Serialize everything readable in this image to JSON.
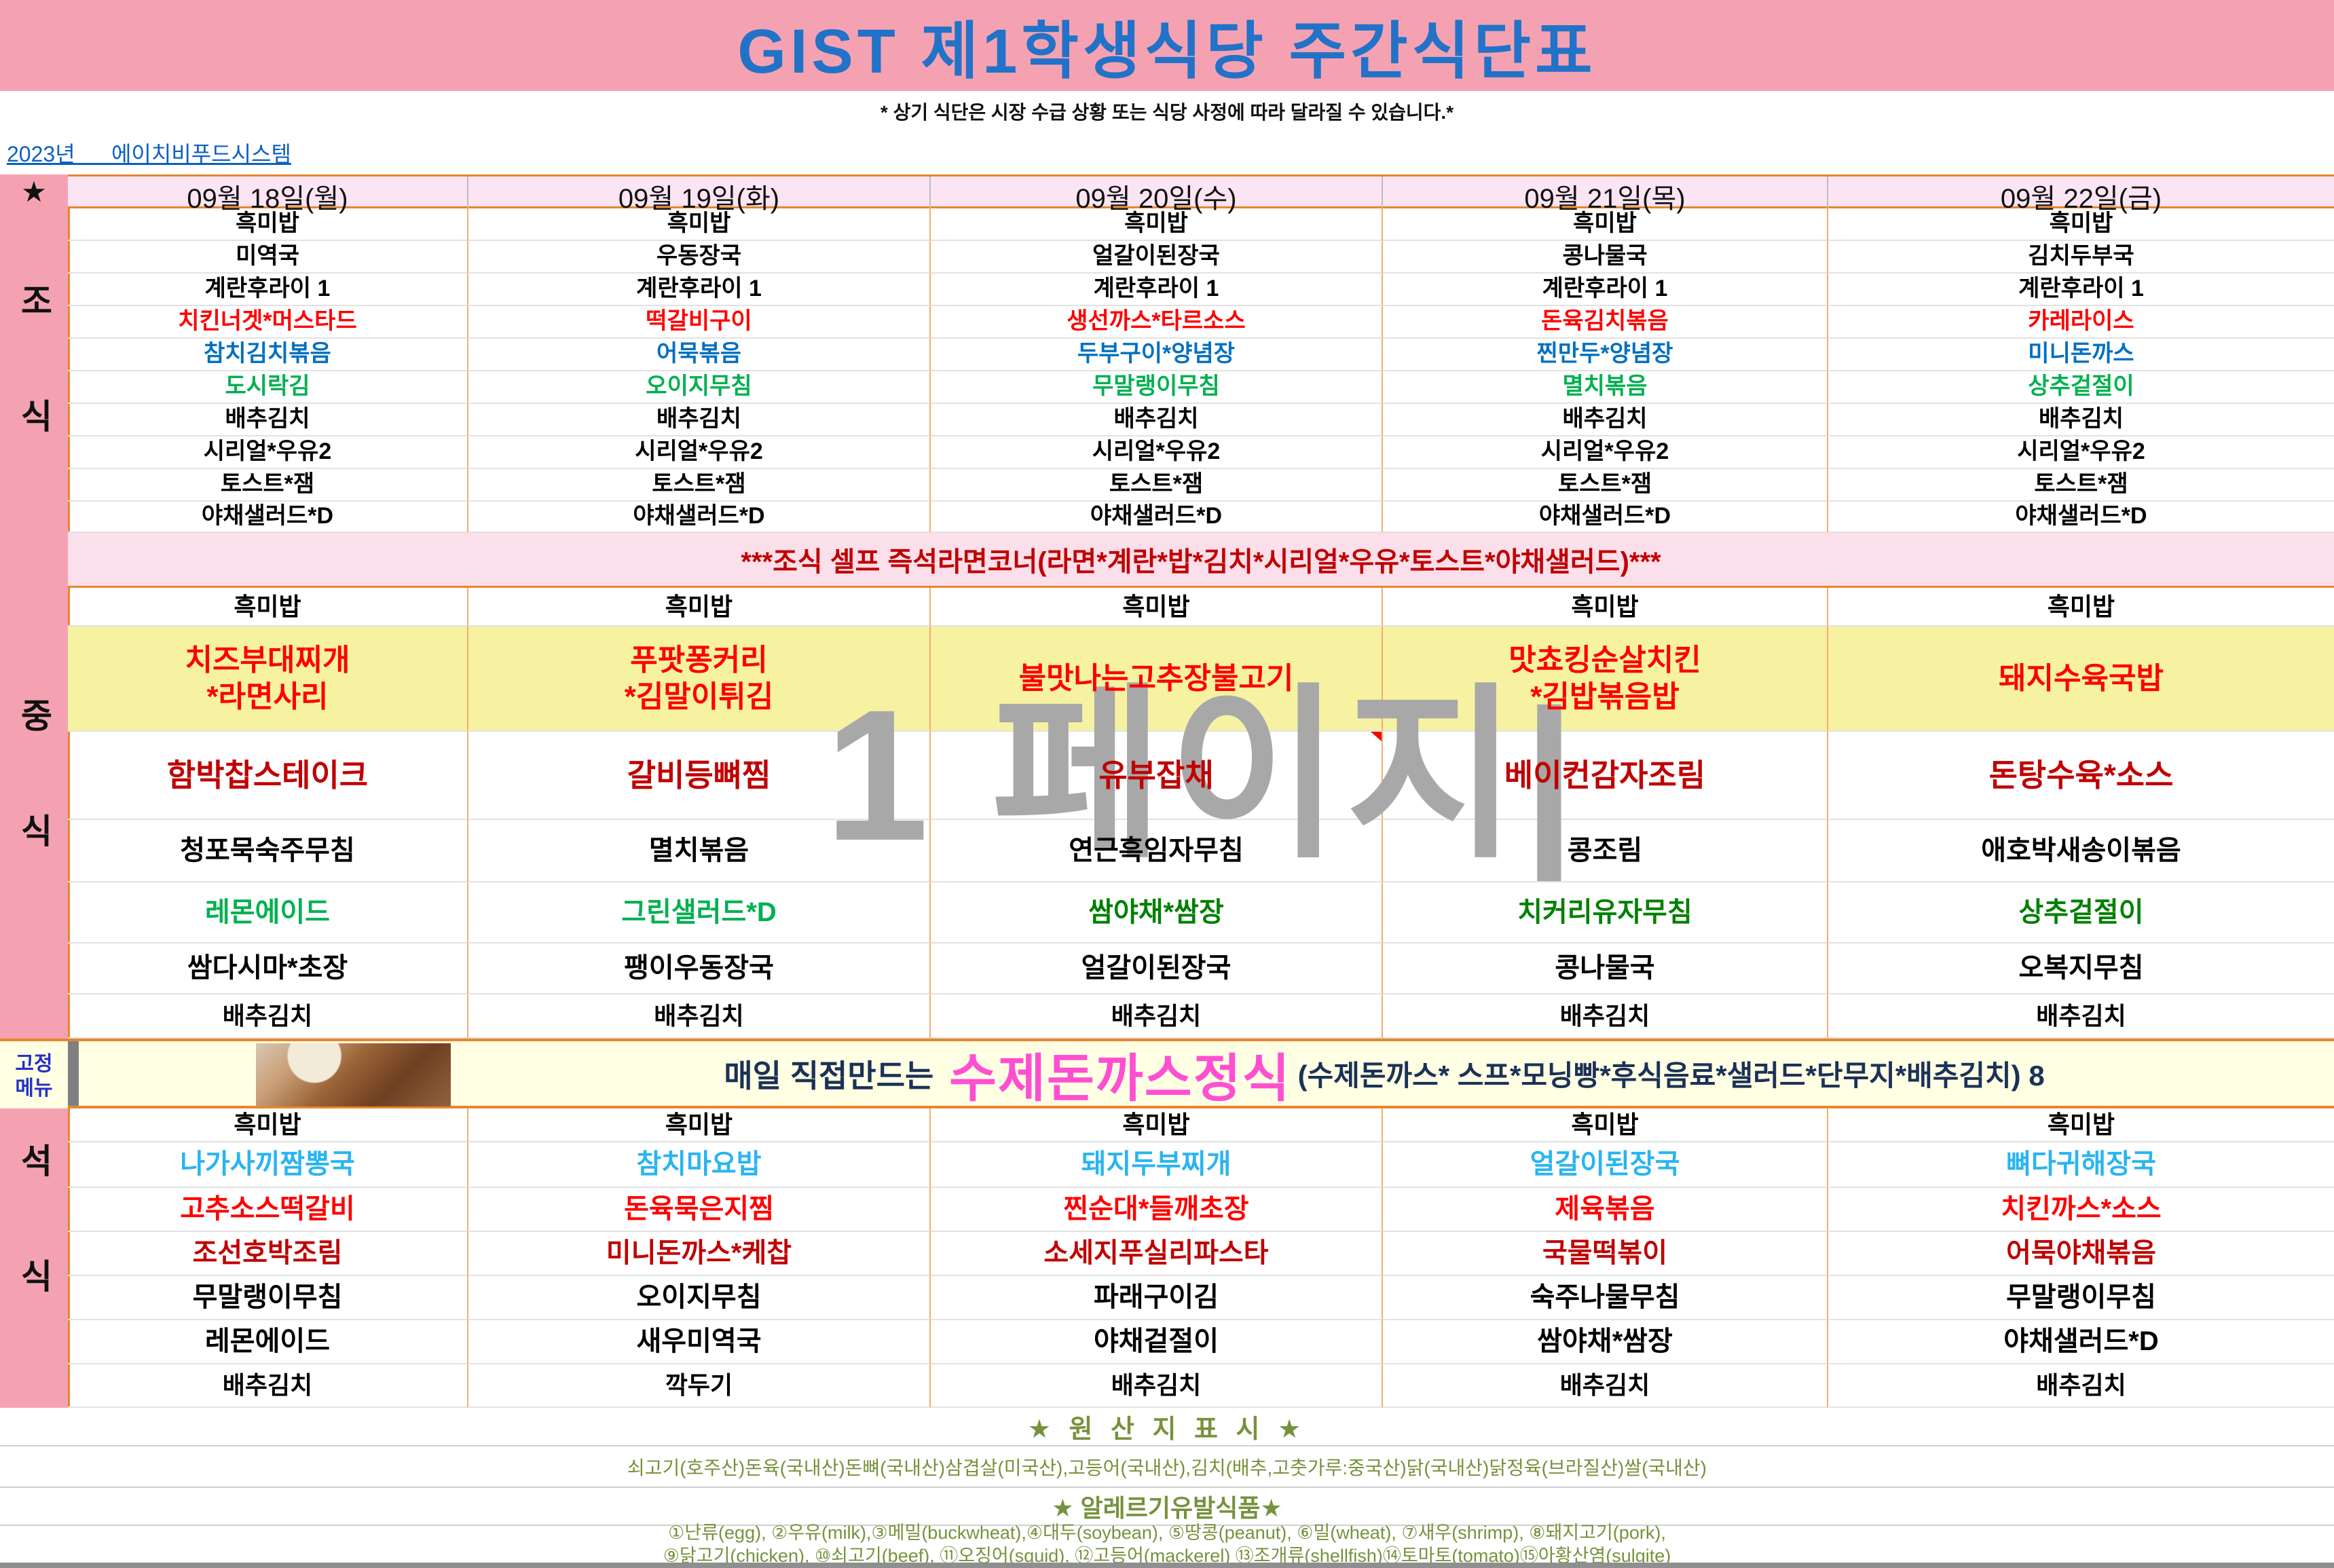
{
  "title": "GIST 제1학생식당 주간식단표",
  "subtitle": "* 상기 식단은 시장 수급 상황 또는 식당 사정에 따라 달라질 수 있습니다.*",
  "vendor_link": "2023년      에이치비푸드시스템",
  "corner_star": "★",
  "days": [
    "09월 18일(월)",
    "09월 19일(화)",
    "09월 20일(수)",
    "09월 21일(목)",
    "09월 22일(금)"
  ],
  "sidebar": {
    "breakfast": "조식",
    "lunch": "중식",
    "fixed": "고정\n메뉴",
    "dinner": "석식"
  },
  "colors": {
    "k": "#000000",
    "r": "#FE0000",
    "dr": "#C00000",
    "b": "#0070C0",
    "c": "#29B5F0",
    "g": "#00B050",
    "dg": "#008000"
  },
  "accents": {
    "title_blue": "#2272C8",
    "banner_pink": "#F4A2B2",
    "header_pink": "#FBE4F3",
    "self_banner_pink": "#FBDFEA",
    "lunch_yellow": "#F6F2A2",
    "fixed_yellow": "#FFFFE3",
    "olive": "#76923C",
    "magenta": "#FF4FD1",
    "navy": "#1B3158",
    "border_orange": "#E8862D",
    "watermark_gray": "#A8A8A8"
  },
  "breakfast_banner": "***조식 셀프 즉석라면코너(라면*계란*밥*김치*시리얼*우유*토스트*야채샐러드)***",
  "watermark": "1 페이지|",
  "meals": {
    "breakfast": {
      "rows": [
        {
          "color": "k",
          "cells": [
            "흑미밥",
            "흑미밥",
            "흑미밥",
            "흑미밥",
            "흑미밥"
          ]
        },
        {
          "color": "k",
          "cells": [
            "미역국",
            "우동장국",
            "얼갈이된장국",
            "콩나물국",
            "김치두부국"
          ]
        },
        {
          "color": "k",
          "cells": [
            "계란후라이 1",
            "계란후라이 1",
            "계란후라이 1",
            "계란후라이 1",
            "계란후라이 1"
          ]
        },
        {
          "color": "r",
          "cells": [
            "치킨너겟*머스타드",
            "떡갈비구이",
            "생선까스*타르소스",
            "돈육김치볶음",
            "카레라이스"
          ]
        },
        {
          "color": "b",
          "cells": [
            "참치김치볶음",
            "어묵볶음",
            "두부구이*양념장",
            "찐만두*양념장",
            "미니돈까스"
          ]
        },
        {
          "color": "g",
          "cells": [
            "도시락김",
            "오이지무침",
            "무말랭이무침",
            "멸치볶음",
            "상추겉절이"
          ]
        },
        {
          "color": "k",
          "cells": [
            "배추김치",
            "배추김치",
            "배추김치",
            "배추김치",
            "배추김치"
          ]
        },
        {
          "color": "k",
          "cells": [
            "시리얼*우유2",
            "시리얼*우유2",
            "시리얼*우유2",
            "시리얼*우유2",
            "시리얼*우유2"
          ]
        },
        {
          "color": "k",
          "cells": [
            "토스트*잼",
            "토스트*잼",
            "토스트*잼",
            "토스트*잼",
            "토스트*잼"
          ]
        },
        {
          "color": "k",
          "cells": [
            "야채샐러드*D",
            "야채샐러드*D",
            "야채샐러드*D",
            "야채샐러드*D",
            "야채샐러드*D"
          ]
        }
      ]
    },
    "lunch": {
      "rows": [
        {
          "color": "k",
          "cells": [
            "흑미밥",
            "흑미밥",
            "흑미밥",
            "흑미밥",
            "흑미밥"
          ]
        },
        {
          "color": "r",
          "bg": "#F6F2A2",
          "cells": [
            "치즈부대찌개\n*라면사리",
            "푸팟퐁커리\n*김말이튀김",
            "불맛나는고추장불고기",
            "맛쵸킹순살치킨\n*김밥볶음밥",
            "돼지수육국밥"
          ]
        },
        {
          "color": "dr",
          "cells": [
            "함박찹스테이크",
            "갈비등뼈찜",
            "유부잡채",
            "베이컨감자조림",
            "돈탕수육*소스"
          ]
        },
        {
          "color": "k",
          "cells": [
            "청포묵숙주무침",
            "멸치볶음",
            "연근흑임자무침",
            "콩조림",
            "애호박새송이볶음"
          ]
        },
        {
          "colors": [
            "g",
            "g",
            "dg",
            "dg",
            "dg"
          ],
          "cells": [
            "레몬에이드",
            "그린샐러드*D",
            "쌈야채*쌈장",
            "치커리유자무침",
            "상추겉절이"
          ]
        },
        {
          "color": "k",
          "cells": [
            "쌈다시마*초장",
            "팽이우동장국",
            "얼갈이된장국",
            "콩나물국",
            "오복지무침"
          ]
        },
        {
          "color": "k",
          "cells": [
            "배추김치",
            "배추김치",
            "배추김치",
            "배추김치",
            "배추김치"
          ]
        }
      ]
    },
    "dinner": {
      "rows": [
        {
          "color": "k",
          "cells": [
            "흑미밥",
            "흑미밥",
            "흑미밥",
            "흑미밥",
            "흑미밥"
          ]
        },
        {
          "color": "c",
          "cells": [
            "나가사끼짬뽕국",
            "참치마요밥",
            "돼지두부찌개",
            "얼갈이된장국",
            "뼈다귀해장국"
          ]
        },
        {
          "color": "r",
          "cells": [
            "고추소스떡갈비",
            "돈육묵은지찜",
            "찐순대*들깨초장",
            "제육볶음",
            "치킨까스*소스"
          ]
        },
        {
          "color": "dr",
          "cells": [
            "조선호박조림",
            "미니돈까스*케찹",
            "소세지푸실리파스타",
            "국물떡볶이",
            "어묵야채볶음"
          ]
        },
        {
          "color": "k",
          "cells": [
            "무말랭이무침",
            "오이지무침",
            "파래구이김",
            "숙주나물무침",
            "무말랭이무침"
          ]
        },
        {
          "color": "k",
          "cells": [
            "레몬에이드",
            "새우미역국",
            "야채겉절이",
            "쌈야채*쌈장",
            "야채샐러드*D"
          ]
        },
        {
          "color": "k",
          "cells": [
            "배추김치",
            "깍두기",
            "배추김치",
            "배추김치",
            "배추김치"
          ]
        }
      ]
    }
  },
  "fixed_menu": {
    "label": "고정\n메뉴",
    "prefix": "매일 직접만드는 ",
    "highlight": "수제돈까스정식",
    "suffix": "(수제돈까스* 스프*모닝빵*후식음료*샐러드*단무지*배추김치) 8"
  },
  "notes": {
    "origin_title": "★ 원 산 지 표 시 ★",
    "origin_text": "쇠고기(호주산)돈육(국내산)돈뼈(국내산)삼겹살(미국산),고등어(국내산),김치(배추,고춧가루:중국산)닭(국내산)닭정육(브라질산)쌀(국내산)",
    "allergy_title": "★ 알레르기유발식품★",
    "allergy_line1": "①난류(egg), ②우유(milk),③메밀(buckwheat),④대두(soybean), ⑤땅콩(peanut), ⑥밀(wheat), ⑦새우(shrimp), ⑧돼지고기(pork),",
    "allergy_line2": "⑨닭고기(chicken), ⑩쇠고기(beef), ⑪오징어(squid), ⑫고등어(mackerel) ⑬조개류(shellfish)⑭토마토(tomato)⑮아황산염(sulgite)"
  }
}
